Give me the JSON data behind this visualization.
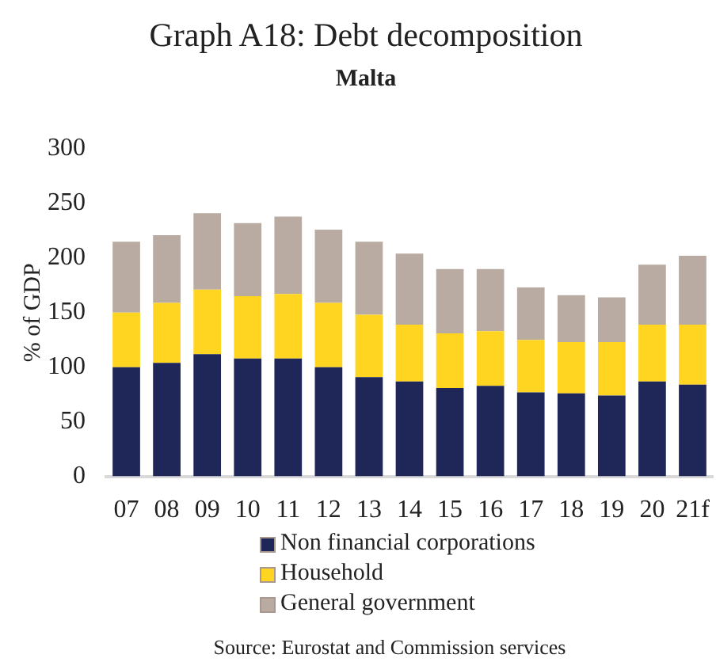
{
  "chart_data": {
    "type": "bar",
    "title": "Graph A18: Debt decomposition",
    "subtitle": "Malta",
    "ylabel": "% of GDP",
    "categories": [
      "07",
      "08",
      "09",
      "10",
      "11",
      "12",
      "13",
      "14",
      "15",
      "16",
      "17",
      "18",
      "19",
      "20",
      "21f"
    ],
    "stacked": true,
    "series": [
      {
        "name": "Non financial corporations",
        "color": "#1f2759",
        "values": [
          100,
          104,
          112,
          108,
          108,
          100,
          91,
          87,
          81,
          83,
          77,
          76,
          74,
          87,
          84
        ]
      },
      {
        "name": "Household",
        "color": "#ffd522",
        "values": [
          50,
          55,
          59,
          57,
          59,
          59,
          57,
          52,
          50,
          50,
          48,
          47,
          49,
          52,
          55
        ]
      },
      {
        "name": "General government",
        "color": "#b9aba1",
        "values": [
          65,
          62,
          70,
          67,
          71,
          67,
          67,
          65,
          59,
          57,
          48,
          43,
          41,
          55,
          63
        ]
      }
    ],
    "ylim": [
      0,
      300
    ],
    "yticks": [
      0,
      50,
      100,
      150,
      200,
      250,
      300
    ],
    "grid": false,
    "legend": "bottom",
    "annotations": [
      "Source: Eurostat and Commission services"
    ]
  }
}
